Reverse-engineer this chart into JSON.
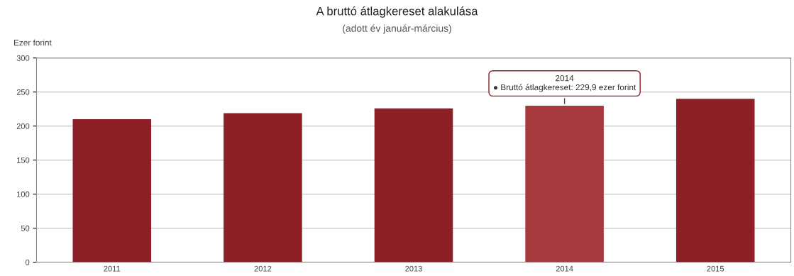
{
  "chart_data": {
    "type": "bar",
    "title": "A bruttó átlagkereset alakulása",
    "subtitle": "(adott év január-március)",
    "ylabel": "Ezer forint",
    "categories": [
      "2011",
      "2012",
      "2013",
      "2014",
      "2015"
    ],
    "values": [
      210,
      219,
      226,
      229.9,
      240
    ],
    "colors": [
      "#8c2026",
      "#8c2026",
      "#8c2026",
      "#a63a3f",
      "#8c2026"
    ],
    "ylim": [
      0,
      300
    ],
    "yticks": [
      0,
      50,
      100,
      150,
      200,
      250,
      300
    ],
    "grid": "y",
    "annotations": [
      {
        "text": "2014\n● Bruttó átlagkereset: 229,9 ezer forint",
        "x": "2014",
        "y": 229.9
      }
    ]
  }
}
